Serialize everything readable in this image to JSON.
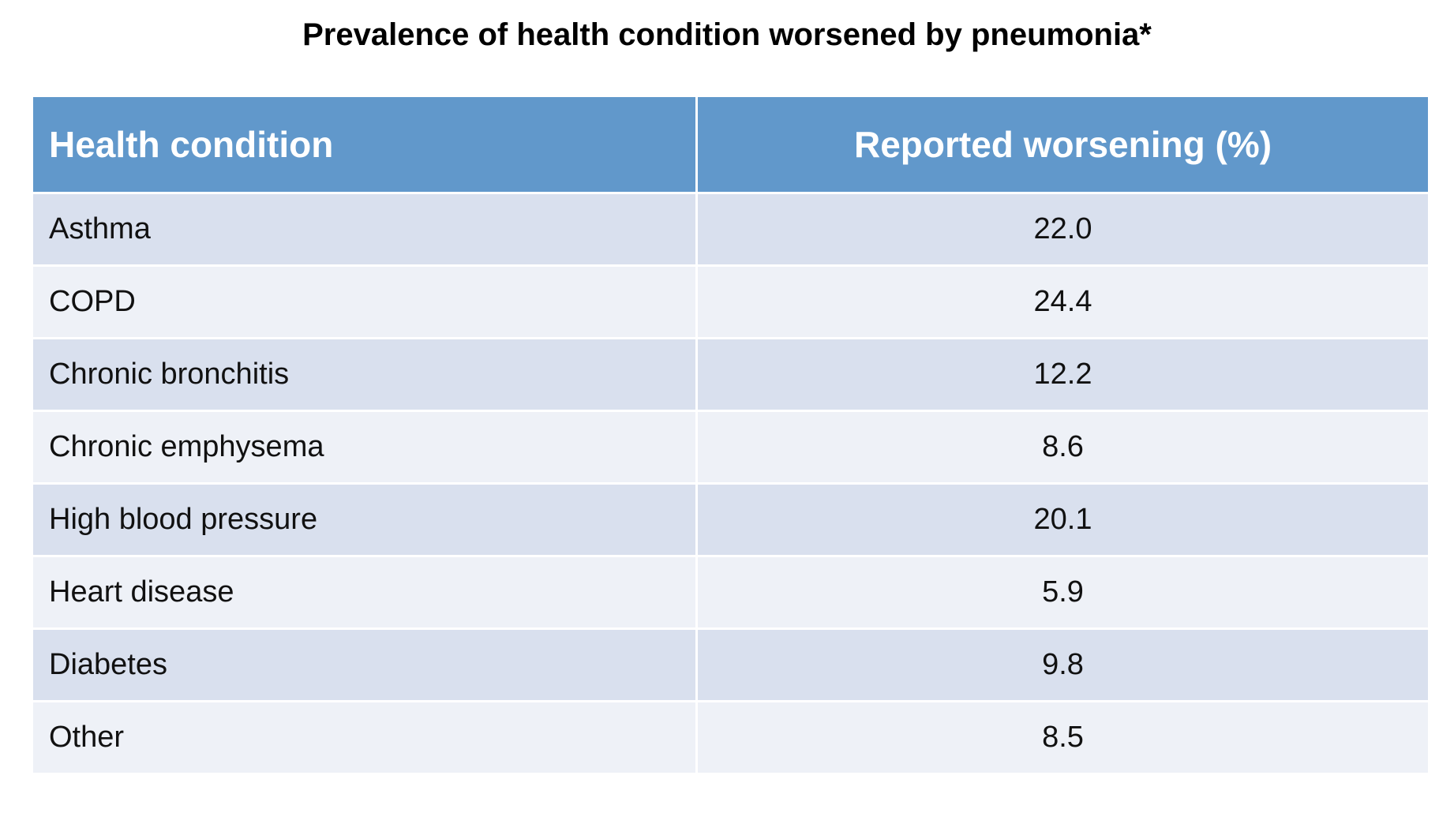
{
  "header": {
    "title": "Prevalence of health condition worsened by pneumonia*"
  },
  "table": {
    "columns": [
      "Health condition",
      "Reported worsening (%)"
    ],
    "rows": [
      [
        "Asthma",
        "22.0"
      ],
      [
        "COPD",
        "24.4"
      ],
      [
        "Chronic bronchitis",
        "12.2"
      ],
      [
        "Chronic emphysema",
        "8.6"
      ],
      [
        "High blood pressure",
        "20.1"
      ],
      [
        "Heart disease",
        "5.9"
      ],
      [
        "Diabetes",
        "9.8"
      ],
      [
        "Other",
        "8.5"
      ]
    ]
  }
}
